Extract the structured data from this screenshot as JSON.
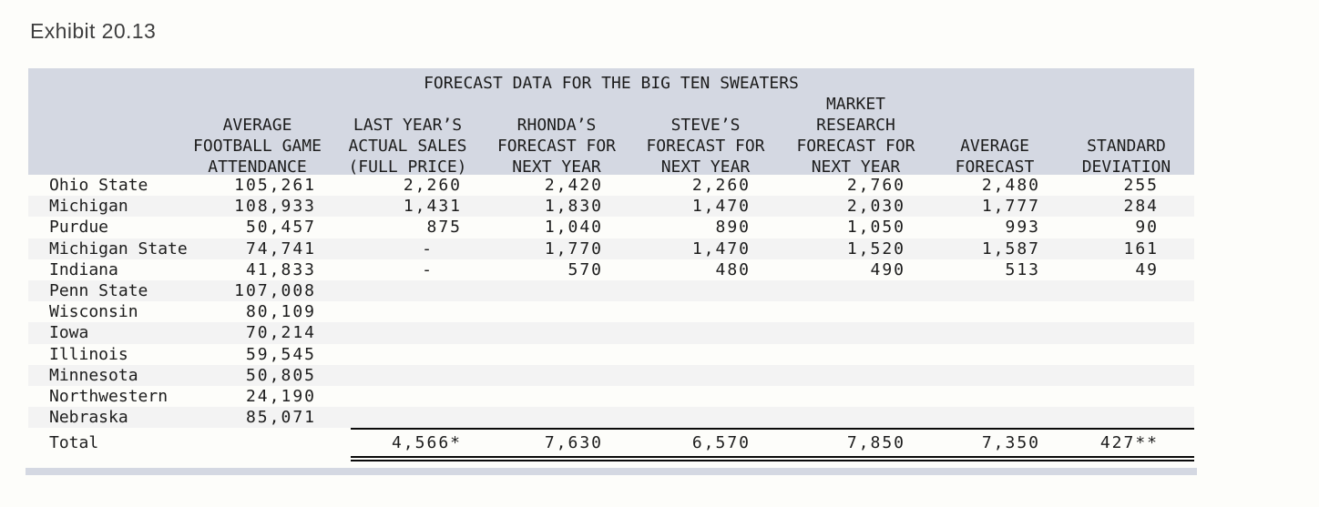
{
  "page": {
    "exhibit_label": "Exhibit 20.13"
  },
  "colors": {
    "header_band": "#d4d8e2",
    "row_stripe": "#f3f3f3",
    "text": "#1c1c1c",
    "rule": "#0a0a0a",
    "page_background": "#fdfdfa"
  },
  "table": {
    "title": "FORECAST DATA FOR THE BIG TEN SWEATERS",
    "columns": [
      {
        "id": "team",
        "header": ""
      },
      {
        "id": "attendance",
        "header": "AVERAGE\nFOOTBALL GAME\nATTENDANCE"
      },
      {
        "id": "last_year_sales",
        "header": "LAST YEAR’S\nACTUAL SALES\n(FULL PRICE)"
      },
      {
        "id": "rhonda_forecast",
        "header": "RHONDA’S\nFORECAST FOR\nNEXT YEAR"
      },
      {
        "id": "steve_forecast",
        "header": "STEVE’S\nFORECAST FOR\nNEXT YEAR"
      },
      {
        "id": "market_research_forecast",
        "header": "MARKET\nRESEARCH\nFORECAST FOR\nNEXT YEAR"
      },
      {
        "id": "average_forecast",
        "header": "AVERAGE\nFORECAST"
      },
      {
        "id": "standard_deviation",
        "header": "STANDARD\nDEVIATION"
      }
    ],
    "rows": [
      {
        "team": "Ohio State",
        "values": [
          "105,261",
          "2,260",
          "2,420",
          "2,260",
          "2,760",
          "2,480",
          "255"
        ]
      },
      {
        "team": "Michigan",
        "values": [
          "108,933",
          "1,431",
          "1,830",
          "1,470",
          "2,030",
          "1,777",
          "284"
        ]
      },
      {
        "team": "Purdue",
        "values": [
          "50,457",
          "875",
          "1,040",
          "890",
          "1,050",
          "993",
          "90"
        ]
      },
      {
        "team": "Michigan State",
        "values": [
          "74,741",
          "-",
          "1,770",
          "1,470",
          "1,520",
          "1,587",
          "161"
        ]
      },
      {
        "team": "Indiana",
        "values": [
          "41,833",
          "-",
          "570",
          "480",
          "490",
          "513",
          "49"
        ]
      },
      {
        "team": "Penn State",
        "values": [
          "107,008",
          "",
          "",
          "",
          "",
          "",
          ""
        ]
      },
      {
        "team": "Wisconsin",
        "values": [
          "80,109",
          "",
          "",
          "",
          "",
          "",
          ""
        ]
      },
      {
        "team": "Iowa",
        "values": [
          "70,214",
          "",
          "",
          "",
          "",
          "",
          ""
        ]
      },
      {
        "team": "Illinois",
        "values": [
          "59,545",
          "",
          "",
          "",
          "",
          "",
          ""
        ]
      },
      {
        "team": "Minnesota",
        "values": [
          "50,805",
          "",
          "",
          "",
          "",
          "",
          ""
        ]
      },
      {
        "team": "Northwestern",
        "values": [
          "24,190",
          "",
          "",
          "",
          "",
          "",
          ""
        ]
      },
      {
        "team": "Nebraska",
        "values": [
          "85,071",
          "",
          "",
          "",
          "",
          "",
          ""
        ]
      }
    ],
    "total": {
      "label": "Total",
      "values": [
        "",
        "4,566*",
        "7,630",
        "6,570",
        "7,850",
        "7,350",
        "427**"
      ]
    }
  }
}
